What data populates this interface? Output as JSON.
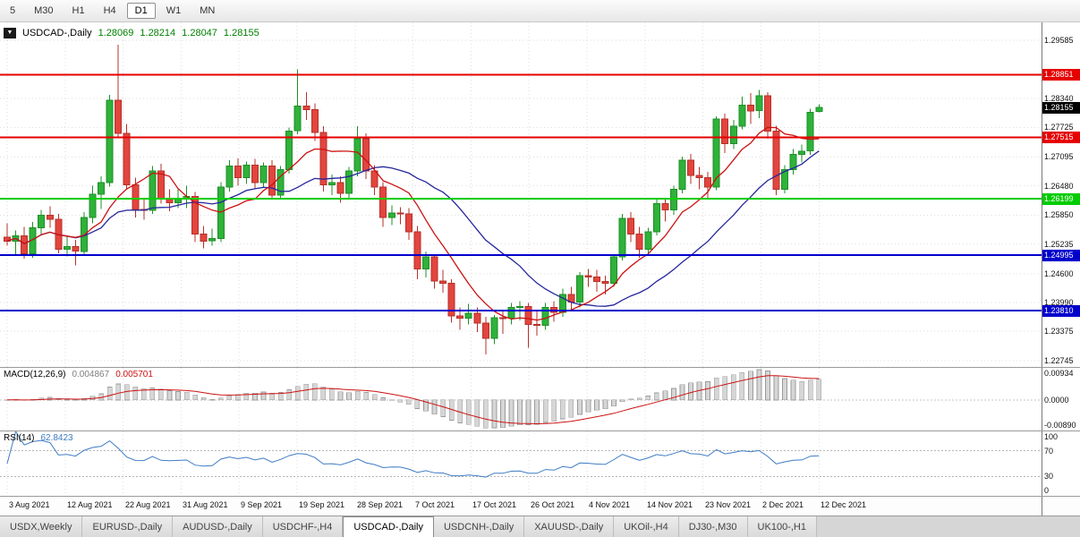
{
  "toolbar": {
    "timeframes": [
      "5",
      "M30",
      "H1",
      "H4",
      "D1",
      "W1",
      "MN"
    ],
    "active": "D1"
  },
  "header": {
    "menu_glyph": "▼",
    "symbol_label": "USDCAD-,Daily",
    "ohlc": [
      "1.28069",
      "1.28214",
      "1.28047",
      "1.28155"
    ]
  },
  "macd": {
    "label": "MACD(12,26,9)",
    "value_main": "0.004867",
    "value_signal": "0.005701"
  },
  "rsi": {
    "label": "RSI(14)",
    "value": "62.8423"
  },
  "tabs": {
    "items": [
      "USDX,Weekly",
      "EURUSD-,Daily",
      "AUDUSD-,Daily",
      "USDCHF-,H4",
      "USDCAD-,Daily",
      "USDCNH-,Daily",
      "XAUUSD-,Daily",
      "UKOil-,H4",
      "DJ30-,M30",
      "UK100-,H1"
    ],
    "active": "USDCAD-,Daily"
  },
  "chart_data": {
    "type": "candlestick",
    "symbol": "USDCAD",
    "timeframe": "Daily",
    "x_labels": [
      "3 Aug 2021",
      "12 Aug 2021",
      "22 Aug 2021",
      "31 Aug 2021",
      "9 Sep 2021",
      "19 Sep 2021",
      "28 Sep 2021",
      "7 Oct 2021",
      "17 Oct 2021",
      "26 Oct 2021",
      "4 Nov 2021",
      "14 Nov 2021",
      "23 Nov 2021",
      "2 Dec 2021",
      "12 Dec 2021"
    ],
    "ylim": [
      1.22611,
      1.29967
    ],
    "y_ticks": [
      1.29585,
      1.2834,
      1.27725,
      1.27095,
      1.2648,
      1.2585,
      1.25235,
      1.246,
      1.2399,
      1.23375,
      1.22745
    ],
    "current_price": 1.28155,
    "levels": [
      {
        "price": 1.28851,
        "color": "#e60000",
        "label": "1.28851"
      },
      {
        "price": 1.27515,
        "color": "#e60000",
        "label": "1.27515"
      },
      {
        "price": 1.26199,
        "color": "#00cc00",
        "label": "1.26199"
      },
      {
        "price": 1.24995,
        "color": "#0000cc",
        "label": "1.24995"
      },
      {
        "price": 1.2381,
        "color": "#0000cc",
        "label": "1.23810"
      }
    ],
    "moving_averages": [
      {
        "period": 20,
        "color": "#26269c"
      },
      {
        "period": 8,
        "color": "#cc1111"
      }
    ],
    "indicators": {
      "macd": {
        "fast": 12,
        "slow": 26,
        "signal": 9,
        "range": [
          -0.0089,
          0.00934
        ],
        "axis_labels": [
          "0.00934",
          "0.0000",
          "-0.00890"
        ]
      },
      "rsi": {
        "period": 14,
        "range": [
          0,
          100
        ],
        "levels": [
          70,
          30
        ],
        "axis_labels": [
          "100",
          "70",
          "30",
          "0"
        ]
      }
    },
    "ohlc": [
      [
        1.2538,
        1.2568,
        1.252,
        1.253
      ],
      [
        1.253,
        1.2552,
        1.25,
        1.2541
      ],
      [
        1.2541,
        1.256,
        1.2492,
        1.2503
      ],
      [
        1.2503,
        1.2571,
        1.2494,
        1.2558
      ],
      [
        1.2558,
        1.2596,
        1.2545,
        1.2585
      ],
      [
        1.2585,
        1.2604,
        1.2558,
        1.2576
      ],
      [
        1.2576,
        1.2588,
        1.2504,
        1.2512
      ],
      [
        1.2512,
        1.254,
        1.2497,
        1.2518
      ],
      [
        1.2518,
        1.2532,
        1.2478,
        1.2508
      ],
      [
        1.2508,
        1.2592,
        1.25,
        1.258
      ],
      [
        1.258,
        1.2648,
        1.2568,
        1.263
      ],
      [
        1.263,
        1.2668,
        1.2598,
        1.2655
      ],
      [
        1.2655,
        1.2842,
        1.2646,
        1.283
      ],
      [
        1.283,
        1.2949,
        1.2752,
        1.276
      ],
      [
        1.276,
        1.278,
        1.264,
        1.265
      ],
      [
        1.265,
        1.2665,
        1.258,
        1.2597
      ],
      [
        1.2597,
        1.262,
        1.2575,
        1.2596
      ],
      [
        1.2596,
        1.269,
        1.2588,
        1.268
      ],
      [
        1.268,
        1.2695,
        1.261,
        1.262
      ],
      [
        1.262,
        1.264,
        1.2594,
        1.2612
      ],
      [
        1.2612,
        1.264,
        1.26,
        1.262
      ],
      [
        1.262,
        1.2648,
        1.26,
        1.2625
      ],
      [
        1.2625,
        1.2635,
        1.2528,
        1.2545
      ],
      [
        1.2545,
        1.2562,
        1.2514,
        1.253
      ],
      [
        1.253,
        1.2556,
        1.252,
        1.2535
      ],
      [
        1.2535,
        1.2656,
        1.2528,
        1.2645
      ],
      [
        1.2645,
        1.2702,
        1.2636,
        1.269
      ],
      [
        1.269,
        1.2706,
        1.2648,
        1.2665
      ],
      [
        1.2665,
        1.27,
        1.2652,
        1.2692
      ],
      [
        1.2692,
        1.2705,
        1.264,
        1.2655
      ],
      [
        1.2655,
        1.2698,
        1.2644,
        1.269
      ],
      [
        1.269,
        1.2702,
        1.2618,
        1.2628
      ],
      [
        1.2628,
        1.269,
        1.262,
        1.2682
      ],
      [
        1.2682,
        1.2772,
        1.2674,
        1.2765
      ],
      [
        1.2765,
        1.2896,
        1.2758,
        1.2818
      ],
      [
        1.2818,
        1.2848,
        1.2788,
        1.281
      ],
      [
        1.281,
        1.2824,
        1.2744,
        1.2762
      ],
      [
        1.2762,
        1.2775,
        1.2636,
        1.265
      ],
      [
        1.265,
        1.2672,
        1.2628,
        1.2655
      ],
      [
        1.2655,
        1.2668,
        1.2612,
        1.2632
      ],
      [
        1.2632,
        1.2688,
        1.2622,
        1.268
      ],
      [
        1.268,
        1.2775,
        1.2668,
        1.2748
      ],
      [
        1.2748,
        1.276,
        1.2662,
        1.268
      ],
      [
        1.268,
        1.2692,
        1.2628,
        1.2645
      ],
      [
        1.2645,
        1.2656,
        1.256,
        1.258
      ],
      [
        1.258,
        1.2606,
        1.2564,
        1.259
      ],
      [
        1.259,
        1.2602,
        1.2566,
        1.2588
      ],
      [
        1.2588,
        1.26,
        1.2532,
        1.255
      ],
      [
        1.255,
        1.2562,
        1.2448,
        1.247
      ],
      [
        1.247,
        1.2508,
        1.2452,
        1.2496
      ],
      [
        1.2496,
        1.2502,
        1.2428,
        1.2445
      ],
      [
        1.2445,
        1.2468,
        1.242,
        1.244
      ],
      [
        1.244,
        1.2448,
        1.2356,
        1.237
      ],
      [
        1.237,
        1.2388,
        1.234,
        1.2365
      ],
      [
        1.2365,
        1.2396,
        1.2352,
        1.2376
      ],
      [
        1.2376,
        1.2388,
        1.2336,
        1.2355
      ],
      [
        1.2355,
        1.2368,
        1.2288,
        1.2322
      ],
      [
        1.2322,
        1.2372,
        1.231,
        1.2366
      ],
      [
        1.2366,
        1.238,
        1.2332,
        1.2365
      ],
      [
        1.2365,
        1.2398,
        1.2352,
        1.2388
      ],
      [
        1.2388,
        1.2402,
        1.236,
        1.239
      ],
      [
        1.239,
        1.2398,
        1.2302,
        1.2352
      ],
      [
        1.2352,
        1.238,
        1.2328,
        1.235
      ],
      [
        1.235,
        1.2398,
        1.234,
        1.2388
      ],
      [
        1.2388,
        1.2402,
        1.2358,
        1.2378
      ],
      [
        1.2378,
        1.2428,
        1.2368,
        1.2416
      ],
      [
        1.2416,
        1.2432,
        1.238,
        1.24
      ],
      [
        1.24,
        1.2464,
        1.2388,
        1.2456
      ],
      [
        1.2456,
        1.247,
        1.2432,
        1.2453
      ],
      [
        1.2453,
        1.2468,
        1.2422,
        1.2444
      ],
      [
        1.2444,
        1.2456,
        1.2416,
        1.244
      ],
      [
        1.244,
        1.2502,
        1.2432,
        1.2496
      ],
      [
        1.2496,
        1.2588,
        1.2488,
        1.2578
      ],
      [
        1.2578,
        1.2592,
        1.2528,
        1.2545
      ],
      [
        1.2545,
        1.256,
        1.2494,
        1.2512
      ],
      [
        1.2512,
        1.2558,
        1.25,
        1.255
      ],
      [
        1.255,
        1.2618,
        1.2542,
        1.261
      ],
      [
        1.261,
        1.2622,
        1.2572,
        1.2596
      ],
      [
        1.2596,
        1.2648,
        1.2586,
        1.264
      ],
      [
        1.264,
        1.271,
        1.2632,
        1.2702
      ],
      [
        1.2702,
        1.2716,
        1.2652,
        1.267
      ],
      [
        1.267,
        1.2688,
        1.264,
        1.2665
      ],
      [
        1.2665,
        1.2678,
        1.2622,
        1.2645
      ],
      [
        1.2645,
        1.2796,
        1.2638,
        1.279
      ],
      [
        1.279,
        1.2802,
        1.2718,
        1.2738
      ],
      [
        1.2738,
        1.2788,
        1.2726,
        1.2775
      ],
      [
        1.2775,
        1.2838,
        1.2768,
        1.282
      ],
      [
        1.282,
        1.2846,
        1.278,
        1.2808
      ],
      [
        1.2808,
        1.2852,
        1.2792,
        1.284
      ],
      [
        1.284,
        1.2848,
        1.2748,
        1.2765
      ],
      [
        1.2765,
        1.2776,
        1.2628,
        1.264
      ],
      [
        1.264,
        1.2692,
        1.2632,
        1.2682
      ],
      [
        1.2682,
        1.2726,
        1.2672,
        1.2715
      ],
      [
        1.2715,
        1.2736,
        1.2698,
        1.2722
      ],
      [
        1.2722,
        1.2812,
        1.2714,
        1.2805
      ],
      [
        1.28069,
        1.28214,
        1.28047,
        1.28155
      ]
    ]
  }
}
